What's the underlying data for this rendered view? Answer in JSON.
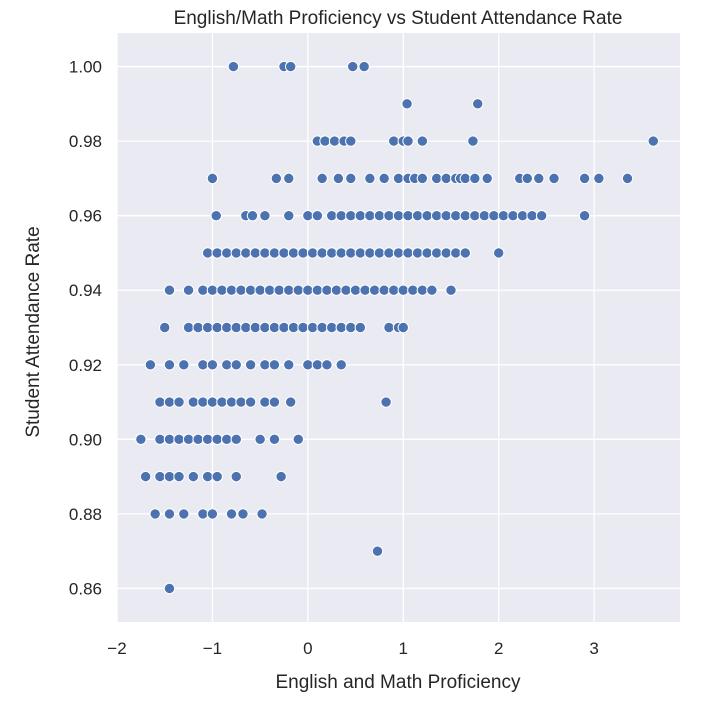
{
  "chart_data": {
    "type": "scatter",
    "title": "English/Math Proficiency vs Student Attendance Rate",
    "xlabel": "English and Math Proficiency",
    "ylabel": "Student Attendance Rate",
    "xlim": [
      -2.0,
      3.9
    ],
    "ylim": [
      0.851,
      1.009
    ],
    "xticks": [
      -2,
      -1,
      0,
      1,
      2,
      3
    ],
    "xtick_labels": [
      "−2",
      "−1",
      "0",
      "1",
      "2",
      "3"
    ],
    "yticks": [
      0.86,
      0.88,
      0.9,
      0.92,
      0.94,
      0.96,
      0.98,
      1.0
    ],
    "ytick_labels": [
      "0.86",
      "0.88",
      "0.90",
      "0.92",
      "0.94",
      "0.96",
      "0.98",
      "1.00"
    ],
    "grid": true,
    "colors": {
      "background": "#eaeaf2",
      "grid": "#ffffff",
      "marker": "#4c72b0",
      "marker_edge": "#ffffff"
    },
    "rows": [
      {
        "y": 1.0,
        "x": [
          -0.78,
          -0.25,
          -0.18,
          0.47,
          0.59
        ]
      },
      {
        "y": 0.99,
        "x": [
          1.04,
          1.78
        ]
      },
      {
        "y": 0.98,
        "x": [
          0.1,
          0.18,
          0.28,
          0.38,
          0.45,
          0.9,
          1.0,
          1.05,
          1.2,
          1.73,
          3.62
        ]
      },
      {
        "y": 0.97,
        "x": [
          -1.0,
          -0.33,
          -0.2,
          0.15,
          0.32,
          0.45,
          0.65,
          0.8,
          0.95,
          1.05,
          1.12,
          1.2,
          1.35,
          1.45,
          1.55,
          1.6,
          1.65,
          1.75,
          1.88,
          2.22,
          2.3,
          2.42,
          2.58,
          2.9,
          3.05,
          3.35
        ]
      },
      {
        "y": 0.96,
        "x": [
          -0.96,
          -0.65,
          -0.58,
          -0.45,
          -0.2,
          0.0,
          0.1,
          0.25,
          0.35,
          0.45,
          0.55,
          0.65,
          0.75,
          0.85,
          0.95,
          1.05,
          1.15,
          1.25,
          1.35,
          1.45,
          1.55,
          1.65,
          1.75,
          1.85,
          1.95,
          2.05,
          2.15,
          2.25,
          2.35,
          2.45,
          2.9
        ]
      },
      {
        "y": 0.95,
        "x": [
          -1.05,
          -0.95,
          -0.85,
          -0.75,
          -0.65,
          -0.55,
          -0.45,
          -0.35,
          -0.25,
          -0.15,
          -0.05,
          0.05,
          0.15,
          0.25,
          0.35,
          0.45,
          0.55,
          0.65,
          0.75,
          0.85,
          0.95,
          1.05,
          1.15,
          1.25,
          1.35,
          1.45,
          1.55,
          1.65,
          2.0
        ]
      },
      {
        "y": 0.94,
        "x": [
          -1.45,
          -1.25,
          -1.1,
          -1.0,
          -0.9,
          -0.8,
          -0.7,
          -0.6,
          -0.5,
          -0.4,
          -0.3,
          -0.2,
          -0.1,
          0.0,
          0.1,
          0.2,
          0.3,
          0.4,
          0.5,
          0.6,
          0.7,
          0.8,
          0.9,
          1.0,
          1.1,
          1.2,
          1.3,
          1.5
        ]
      },
      {
        "y": 0.93,
        "x": [
          -1.5,
          -1.25,
          -1.15,
          -1.05,
          -0.95,
          -0.85,
          -0.75,
          -0.65,
          -0.55,
          -0.45,
          -0.35,
          -0.25,
          -0.15,
          -0.05,
          0.05,
          0.15,
          0.25,
          0.35,
          0.45,
          0.55,
          0.85,
          0.95,
          1.0
        ]
      },
      {
        "y": 0.92,
        "x": [
          -1.65,
          -1.45,
          -1.3,
          -1.1,
          -1.0,
          -0.85,
          -0.75,
          -0.6,
          -0.45,
          -0.35,
          -0.2,
          0.0,
          0.1,
          0.2,
          0.35
        ]
      },
      {
        "y": 0.91,
        "x": [
          -1.55,
          -1.45,
          -1.35,
          -1.2,
          -1.1,
          -1.0,
          -0.9,
          -0.8,
          -0.7,
          -0.6,
          -0.45,
          -0.35,
          -0.18,
          0.82
        ]
      },
      {
        "y": 0.9,
        "x": [
          -1.75,
          -1.55,
          -1.45,
          -1.35,
          -1.25,
          -1.15,
          -1.05,
          -0.95,
          -0.85,
          -0.75,
          -0.5,
          -0.35,
          -0.1
        ]
      },
      {
        "y": 0.89,
        "x": [
          -1.7,
          -1.55,
          -1.45,
          -1.35,
          -1.2,
          -1.05,
          -0.95,
          -0.75,
          -0.28
        ]
      },
      {
        "y": 0.88,
        "x": [
          -1.6,
          -1.45,
          -1.3,
          -1.1,
          -1.0,
          -0.8,
          -0.68,
          -0.48
        ]
      },
      {
        "y": 0.87,
        "x": [
          0.73
        ]
      },
      {
        "y": 0.86,
        "x": [
          -1.45
        ]
      }
    ]
  }
}
